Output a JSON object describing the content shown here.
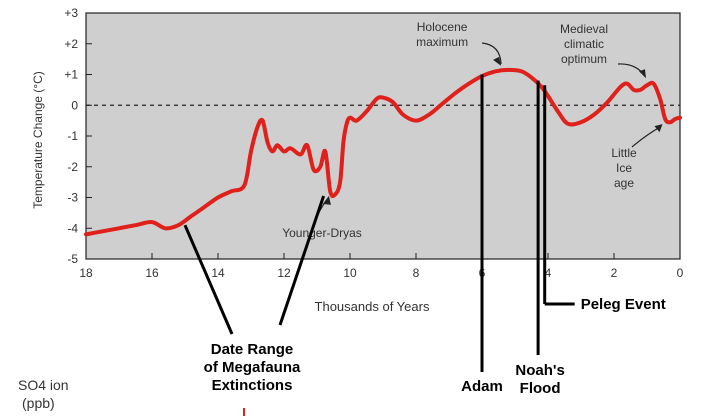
{
  "chart_data": {
    "type": "line",
    "xlabel": "Thousands of Years",
    "ylabel": "Temperature Change (°C)",
    "xlim": [
      18,
      0
    ],
    "ylim": [
      -5,
      3
    ],
    "x_ticks": [
      "18",
      "16",
      "14",
      "12",
      "10",
      "8",
      "6",
      "4",
      "2",
      "0"
    ],
    "y_ticks": [
      "+3",
      "+2",
      "+1",
      "0",
      "-1",
      "-2",
      "-3",
      "-4",
      "-5"
    ],
    "zero_line": "dashed",
    "series": [
      {
        "color": "#e0201a",
        "x": [
          18,
          17.5,
          17,
          16.5,
          16,
          15.6,
          15.2,
          14.8,
          14.4,
          14,
          13.6,
          13.2,
          13,
          12.8,
          12.65,
          12.5,
          12.35,
          12.2,
          12,
          11.8,
          11.5,
          11.3,
          11.1,
          10.9,
          10.75,
          10.6,
          10.45,
          10.3,
          10.2,
          10.1,
          10,
          9.8,
          9.5,
          9.2,
          9,
          8.7,
          8.4,
          8,
          7.6,
          7.2,
          6.8,
          6.4,
          6,
          5.6,
          5.2,
          4.8,
          4.5,
          4.2,
          4,
          3.7,
          3.4,
          3,
          2.6,
          2.2,
          1.8,
          1.6,
          1.4,
          1.2,
          1,
          0.8,
          0.6,
          0.45,
          0.3,
          0.15,
          0
        ],
        "y": [
          -4.2,
          -4.1,
          -4.0,
          -3.9,
          -3.8,
          -4.0,
          -3.9,
          -3.6,
          -3.3,
          -3.0,
          -2.8,
          -2.6,
          -1.5,
          -0.7,
          -0.5,
          -1.2,
          -1.5,
          -1.3,
          -1.5,
          -1.4,
          -1.6,
          -1.3,
          -2.1,
          -2.0,
          -1.5,
          -2.8,
          -2.9,
          -2.5,
          -1.2,
          -0.6,
          -0.4,
          -0.5,
          -0.2,
          0.2,
          0.25,
          0.1,
          -0.3,
          -0.5,
          -0.3,
          0.05,
          0.4,
          0.7,
          0.95,
          1.1,
          1.15,
          1.1,
          0.9,
          0.6,
          0.3,
          -0.2,
          -0.6,
          -0.55,
          -0.3,
          0.1,
          0.6,
          0.7,
          0.5,
          0.5,
          0.65,
          0.7,
          0.2,
          -0.45,
          -0.55,
          -0.45,
          -0.4
        ]
      }
    ],
    "annotations": [
      {
        "text": "Holocene\nmaximum",
        "x": 5.3,
        "y": 1.15
      },
      {
        "text": "Medieval\nclimatic\noptimum",
        "x": 1.0,
        "y": 0.75
      },
      {
        "text": "Little\nIce\nage",
        "x": 0.5,
        "y": -0.55
      },
      {
        "text": "Younger-Dryas",
        "x": 10.7,
        "y": -2.85
      }
    ],
    "event_markers": [
      {
        "text": "Date Range\nof Megafauna\nExtinctions",
        "range": [
          15.0,
          10.8
        ]
      },
      {
        "text": "Adam",
        "x": 6.0
      },
      {
        "text": "Noah's\nFlood",
        "x": 4.3
      },
      {
        "text": "Peleg Event",
        "x": 4.1
      }
    ]
  },
  "footer": {
    "label_line1": "SO4 ion",
    "label_line2": "(ppb)"
  }
}
